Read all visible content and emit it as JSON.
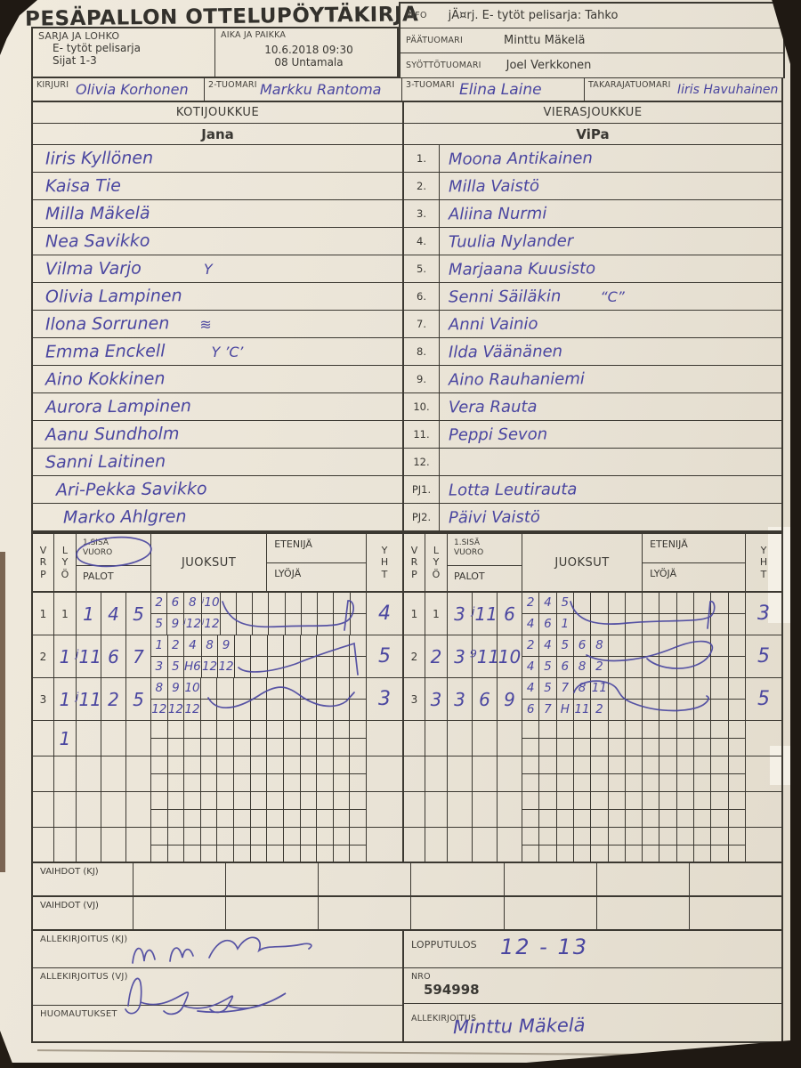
{
  "colors": {
    "paper": "#e9e3d6",
    "ink": "#3a3833",
    "line": "#3b3831",
    "pen": "#4a46a0"
  },
  "title": "PESÄPALLON OTTELUPÖYTÄKIRJA",
  "top": {
    "sarja": {
      "label": "SARJA JA LOHKO",
      "line1": "E- tytöt pelisarja",
      "line2": "Sijat 1-3"
    },
    "aika": {
      "label": "AIKA JA PAIKKA",
      "line1": "10.6.2018 09:30",
      "line2": "08 Untamala"
    },
    "info": {
      "label": "INFO",
      "value": "jÄ¤rj. E- tytöt pelisarja: Tahko"
    },
    "paatuomari": {
      "label": "PÄÄTUOMARI",
      "value": "Minttu Mäkelä"
    },
    "syottotuomari": {
      "label": "SYÖTTÖTUOMARI",
      "value": "Joel Verkkonen"
    },
    "kirjuri": {
      "label": "KIRJURI",
      "value": "Olivia Korhonen"
    },
    "tuomari2": {
      "label": "2-TUOMARI",
      "value": "Markku Rantoma"
    },
    "tuomari3": {
      "label": "3-TUOMARI",
      "value": "Elina Laine"
    },
    "takarajatuomari": {
      "label": "TAKARAJATUOMARI",
      "value": "Iiris Havuhainen"
    }
  },
  "teams": {
    "home": {
      "heading": "KOTIJOUKKUE",
      "name": "Jana",
      "players": [
        {
          "name": "Iiris Kyllönen",
          "mark": ""
        },
        {
          "name": "Kaisa Tie",
          "mark": ""
        },
        {
          "name": "Milla Mäkelä",
          "mark": ""
        },
        {
          "name": "Nea Savikko",
          "mark": ""
        },
        {
          "name": "Vilma Varjo",
          "mark": "Y"
        },
        {
          "name": "Olivia Lampinen",
          "mark": ""
        },
        {
          "name": "Ilona Sorrunen",
          "mark": "≋"
        },
        {
          "name": "Emma Enckell",
          "mark": "Y ’C’"
        },
        {
          "name": "Aino Kokkinen",
          "mark": ""
        },
        {
          "name": "Aurora Lampinen",
          "mark": ""
        },
        {
          "name": "Aanu Sundholm",
          "mark": ""
        },
        {
          "name": "Sanni Laitinen",
          "mark": ""
        },
        {
          "name": "Ari-Pekka Savikko",
          "mark": ""
        },
        {
          "name": "Marko Ahlgren",
          "mark": ""
        }
      ]
    },
    "away": {
      "heading": "VIERASJOUKKUE",
      "name": "ViPa",
      "rows": [
        {
          "no": "1.",
          "name": "Moona Antikainen",
          "mark": ""
        },
        {
          "no": "2.",
          "name": "Milla Vaistö",
          "mark": ""
        },
        {
          "no": "3.",
          "name": "Aliina Nurmi",
          "mark": ""
        },
        {
          "no": "4.",
          "name": "Tuulia Nylander",
          "mark": ""
        },
        {
          "no": "5.",
          "name": "Marjaana Kuusisto",
          "mark": ""
        },
        {
          "no": "6.",
          "name": "Senni Säiläkin",
          "mark": "“C”"
        },
        {
          "no": "7.",
          "name": "Anni Vainio",
          "mark": ""
        },
        {
          "no": "8.",
          "name": "Ilda Väänänen",
          "mark": ""
        },
        {
          "no": "9.",
          "name": "Aino Rauhaniemi",
          "mark": ""
        },
        {
          "no": "10.",
          "name": "Vera Rauta",
          "mark": ""
        },
        {
          "no": "11.",
          "name": "Peppi Sevon",
          "mark": ""
        },
        {
          "no": "12.",
          "name": "",
          "mark": ""
        },
        {
          "no": "PJ1.",
          "name": "Lotta Leutirauta",
          "mark": ""
        },
        {
          "no": "PJ2.",
          "name": "Päivi Vaistö",
          "mark": ""
        }
      ]
    }
  },
  "score": {
    "labels": {
      "vrp": "V\nR\nP",
      "lyo": "L\nY\nÖ",
      "sisa": "1.SISÄ\nVUORO",
      "palot": "PALOT",
      "juoksut": "JUOKSUT",
      "etenija": "ETENIJÄ",
      "lyoja": "LYÖJÄ",
      "yht": "Y\nH\nT"
    },
    "home_rows": [
      {
        "vrp": "1",
        "lyo": "1",
        "palot": [
          "1",
          "4",
          "5"
        ],
        "runs_top": [
          "2",
          "6",
          "8",
          "ʲ10"
        ],
        "runs_bottom": [
          "5",
          "9",
          "ʲ12",
          "ʲ12"
        ],
        "yht": "4"
      },
      {
        "vrp": "2",
        "lyo": "1",
        "palot": [
          "ʲ11",
          "6",
          "7"
        ],
        "runs_top": [
          "1",
          "2",
          "4",
          "8",
          "9"
        ],
        "runs_bottom": [
          "3",
          "5",
          "H6",
          "12",
          "12"
        ],
        "yht": "5"
      },
      {
        "vrp": "3",
        "lyo": "1",
        "palot": [
          "ʲ11",
          "2",
          "5"
        ],
        "runs_top": [
          "8",
          "9",
          "10"
        ],
        "runs_bottom": [
          "12",
          "12",
          "12"
        ],
        "yht": "3"
      }
    ],
    "home_extra_lyo": "1",
    "away_rows": [
      {
        "vrp": "1",
        "lyo": "1",
        "palot": [
          "3",
          "ʲ11",
          "6"
        ],
        "runs_top": [
          "2",
          "4",
          "5"
        ],
        "runs_bottom": [
          "4",
          "6",
          "1"
        ],
        "yht": "3"
      },
      {
        "vrp": "2",
        "lyo": "2",
        "palot": [
          "3",
          "⁹11",
          "10"
        ],
        "runs_top": [
          "2",
          "4",
          "5",
          "6",
          "8"
        ],
        "runs_bottom": [
          "4",
          "5",
          "6",
          "8",
          "2"
        ],
        "yht": "5"
      },
      {
        "vrp": "3",
        "lyo": "3",
        "palot": [
          "3",
          "6",
          "9"
        ],
        "runs_top": [
          "4",
          "5",
          "7",
          "8",
          "11"
        ],
        "runs_bottom": [
          "6",
          "7",
          "H",
          "11",
          "2"
        ],
        "yht": "5"
      }
    ]
  },
  "bottom": {
    "vaihdot_kj": "VAIHDOT (KJ)",
    "vaihdot_vj": "VAIHDOT (VJ)",
    "allekirjoitus_kj": "ALLEKIRJOITUS (KJ)",
    "allekirjoitus_vj": "ALLEKIRJOITUS (VJ)",
    "huomautukset": "HUOMAUTUKSET",
    "lopputulos": {
      "label": "LOPPUTULOS",
      "value": "12 - 13"
    },
    "nro": {
      "label": "NRO",
      "value": "594998"
    },
    "allekirjoitus": {
      "label": "ALLEKIRJOITUS",
      "value": "Minttu Mäkelä"
    }
  }
}
